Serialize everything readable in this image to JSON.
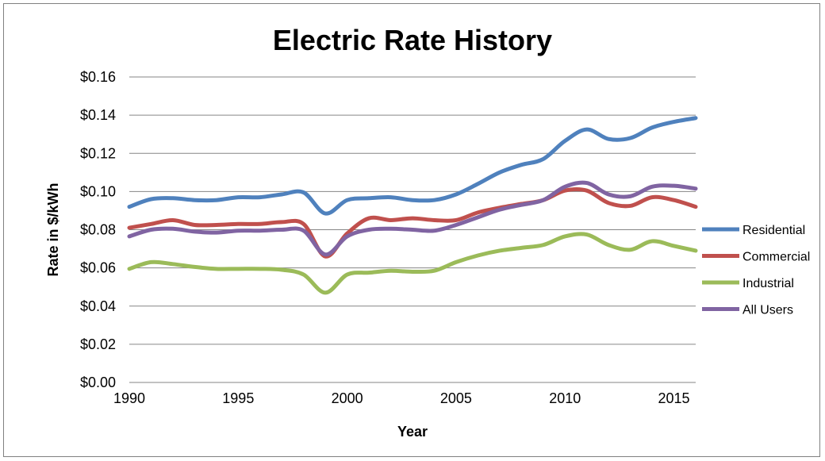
{
  "chart_data": {
    "type": "line",
    "title": "Electric Rate History",
    "xlabel": "Year",
    "ylabel": "Rate in $/kWh",
    "xlim": [
      1990,
      2016
    ],
    "ylim": [
      0,
      0.16
    ],
    "x_ticks": [
      1990,
      1995,
      2000,
      2005,
      2010,
      2015
    ],
    "x_tick_labels": [
      "1990",
      "1995",
      "2000",
      "2005",
      "2010",
      "2015"
    ],
    "y_ticks": [
      0,
      0.02,
      0.04,
      0.06,
      0.08,
      0.1,
      0.12,
      0.14,
      0.16
    ],
    "y_tick_labels": [
      "$0.00",
      "$0.02",
      "$0.04",
      "$0.06",
      "$0.08",
      "$0.10",
      "$0.12",
      "$0.14",
      "$0.16"
    ],
    "grid": "horizontal",
    "legend_position": "right",
    "x": [
      1990,
      1991,
      1992,
      1993,
      1994,
      1995,
      1996,
      1997,
      1998,
      1999,
      2000,
      2001,
      2002,
      2003,
      2004,
      2005,
      2006,
      2007,
      2008,
      2009,
      2010,
      2011,
      2012,
      2013,
      2014,
      2015,
      2016
    ],
    "series": [
      {
        "name": "Residential",
        "color": "#4F81BD",
        "values": [
          0.092,
          0.096,
          0.0965,
          0.0955,
          0.0955,
          0.097,
          0.097,
          0.0985,
          0.0995,
          0.0885,
          0.0955,
          0.0965,
          0.097,
          0.0955,
          0.0955,
          0.0985,
          0.104,
          0.11,
          0.114,
          0.117,
          0.1265,
          0.1325,
          0.1275,
          0.128,
          0.1335,
          0.1365,
          0.1385
        ]
      },
      {
        "name": "Commercial",
        "color": "#C0504D",
        "values": [
          0.081,
          0.083,
          0.085,
          0.0825,
          0.0825,
          0.083,
          0.083,
          0.084,
          0.083,
          0.066,
          0.078,
          0.086,
          0.085,
          0.086,
          0.085,
          0.085,
          0.089,
          0.0915,
          0.0935,
          0.0955,
          0.1005,
          0.1005,
          0.094,
          0.0925,
          0.097,
          0.0955,
          0.092
        ]
      },
      {
        "name": "Industrial",
        "color": "#9BBB59",
        "values": [
          0.0595,
          0.063,
          0.062,
          0.0605,
          0.0595,
          0.0595,
          0.0595,
          0.059,
          0.0565,
          0.047,
          0.0565,
          0.0575,
          0.0585,
          0.058,
          0.0585,
          0.063,
          0.0665,
          0.069,
          0.0705,
          0.072,
          0.0765,
          0.0775,
          0.072,
          0.0695,
          0.074,
          0.0715,
          0.069
        ]
      },
      {
        "name": "All Users",
        "color": "#8064A2",
        "values": [
          0.0765,
          0.08,
          0.0805,
          0.079,
          0.0785,
          0.0795,
          0.0795,
          0.08,
          0.0795,
          0.067,
          0.0765,
          0.08,
          0.0805,
          0.08,
          0.0795,
          0.0825,
          0.0865,
          0.0905,
          0.093,
          0.0955,
          0.1025,
          0.1045,
          0.0985,
          0.0975,
          0.1025,
          0.103,
          0.1015
        ]
      }
    ]
  }
}
